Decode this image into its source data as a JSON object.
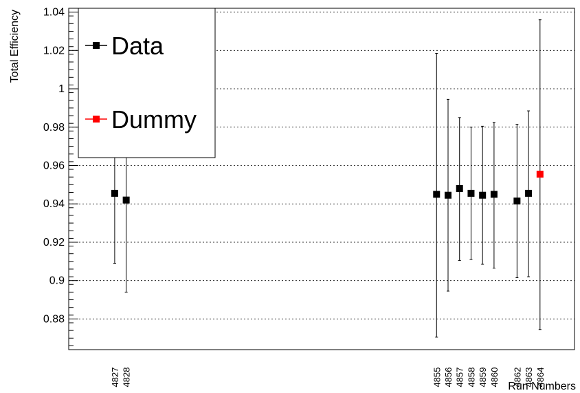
{
  "chart_data": {
    "type": "scatter",
    "title": "",
    "xlabel": "Run Numbers",
    "ylabel": "Total Efficiency",
    "ylim": [
      0.864,
      1.042
    ],
    "yticks": [
      0.88,
      0.9,
      0.92,
      0.94,
      0.96,
      0.98,
      1,
      1.02,
      1.04
    ],
    "ytick_labels": [
      "0.88",
      "0.9",
      "0.92",
      "0.94",
      "0.96",
      "0.98",
      "1",
      "1.02",
      "1.04"
    ],
    "grid": "horizontal-dotted",
    "legend": {
      "position": "top-left",
      "entries": [
        {
          "label": "Data",
          "color": "#000000"
        },
        {
          "label": "Dummy",
          "color": "#ff0000"
        }
      ]
    },
    "series": [
      {
        "name": "Data",
        "color": "#000000",
        "points": [
          {
            "run": "4827",
            "y": 0.9455,
            "lo": 0.909,
            "hi": 0.982
          },
          {
            "run": "4828",
            "y": 0.942,
            "lo": 0.894,
            "hi": 0.99
          },
          {
            "run": "4855",
            "y": 0.945,
            "lo": 0.8705,
            "hi": 1.0185
          },
          {
            "run": "4856",
            "y": 0.9445,
            "lo": 0.8945,
            "hi": 0.9945
          },
          {
            "run": "4857",
            "y": 0.948,
            "lo": 0.9105,
            "hi": 0.985
          },
          {
            "run": "4858",
            "y": 0.9455,
            "lo": 0.911,
            "hi": 0.98
          },
          {
            "run": "4859",
            "y": 0.9445,
            "lo": 0.9085,
            "hi": 0.9805
          },
          {
            "run": "4860",
            "y": 0.945,
            "lo": 0.9065,
            "hi": 0.9825
          },
          {
            "run": "4862",
            "y": 0.9415,
            "lo": 0.9015,
            "hi": 0.9815
          },
          {
            "run": "4863",
            "y": 0.9455,
            "lo": 0.902,
            "hi": 0.9885
          }
        ]
      },
      {
        "name": "Dummy",
        "color": "#ff0000",
        "points": [
          {
            "run": "4864",
            "y": 0.9555,
            "lo": 0.8745,
            "hi": 1.036
          }
        ]
      }
    ]
  }
}
